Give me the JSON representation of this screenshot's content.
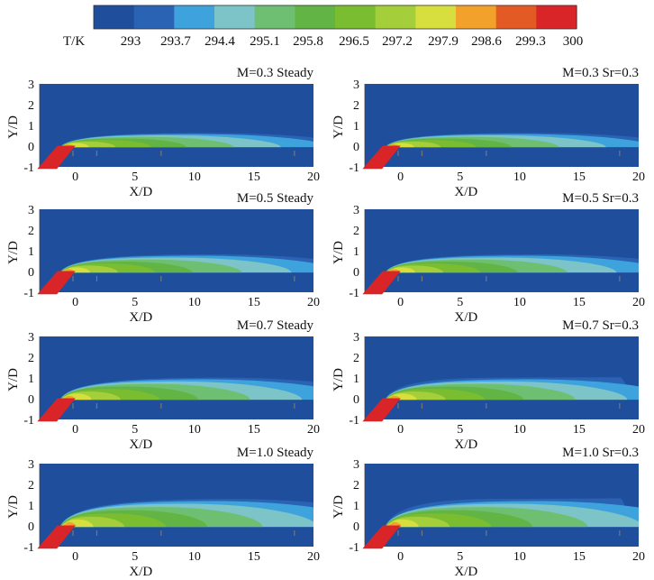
{
  "colorbar": {
    "unit_label": "T/K",
    "ticks": [
      "293",
      "293.7",
      "294.4",
      "295.1",
      "295.8",
      "296.5",
      "297.2",
      "297.9",
      "298.6",
      "299.3",
      "300"
    ],
    "colors": [
      "#1f4e9c",
      "#2a63b4",
      "#3ea3dc",
      "#7cc4c8",
      "#6fbf73",
      "#62b545",
      "#7bbd31",
      "#a5cf3a",
      "#d7df3f",
      "#f2a12a",
      "#e45a24",
      "#d92528"
    ]
  },
  "panels": [
    {
      "title": "M=0.3 Steady",
      "M": 0.3,
      "Sr": null
    },
    {
      "title": "M=0.3  Sr=0.3",
      "M": 0.3,
      "Sr": 0.3
    },
    {
      "title": "M=0.5 Steady",
      "M": 0.5,
      "Sr": null
    },
    {
      "title": "M=0.5  Sr=0.3",
      "M": 0.5,
      "Sr": 0.3
    },
    {
      "title": "M=0.7 Steady",
      "M": 0.7,
      "Sr": null
    },
    {
      "title": "M=0.7  Sr=0.3",
      "M": 0.7,
      "Sr": 0.3
    },
    {
      "title": "M=1.0 Steady",
      "M": 1.0,
      "Sr": null
    },
    {
      "title": "M=1.0  Sr=0.3",
      "M": 1.0,
      "Sr": 0.3
    }
  ],
  "axes": {
    "xlabel": "X/D",
    "ylabel": "Y/D",
    "xticks": [
      "0",
      "5",
      "10",
      "15",
      "20"
    ],
    "yticks": [
      "3",
      "2",
      "1",
      "0",
      "-1"
    ]
  }
}
